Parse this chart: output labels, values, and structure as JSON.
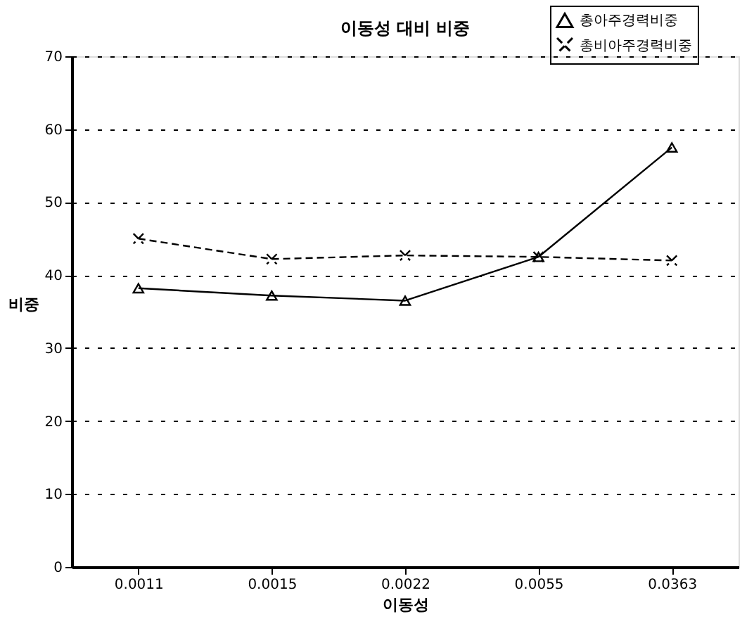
{
  "chart_data": {
    "type": "line",
    "title": "이동성 대비 비중",
    "xlabel": "이동성",
    "ylabel": "비중",
    "categories": [
      "0.0011",
      "0.0015",
      "0.0022",
      "0.0055",
      "0.0363"
    ],
    "ylim": [
      0,
      70
    ],
    "yticks": [
      0,
      10,
      20,
      30,
      40,
      50,
      60,
      70
    ],
    "grid": "y",
    "legend": "top right",
    "series": [
      {
        "name": "총아주경력비중",
        "color": "#000000",
        "marker": "triangle",
        "line_style": "solid",
        "values": [
          38.2,
          37.2,
          36.5,
          42.5,
          57.5
        ]
      },
      {
        "name": "총비아주경력비중",
        "color": "#000000",
        "marker": "cross",
        "line_style": "dashed",
        "values": [
          45,
          42.2,
          42.7,
          42.5,
          42.0
        ]
      }
    ]
  }
}
